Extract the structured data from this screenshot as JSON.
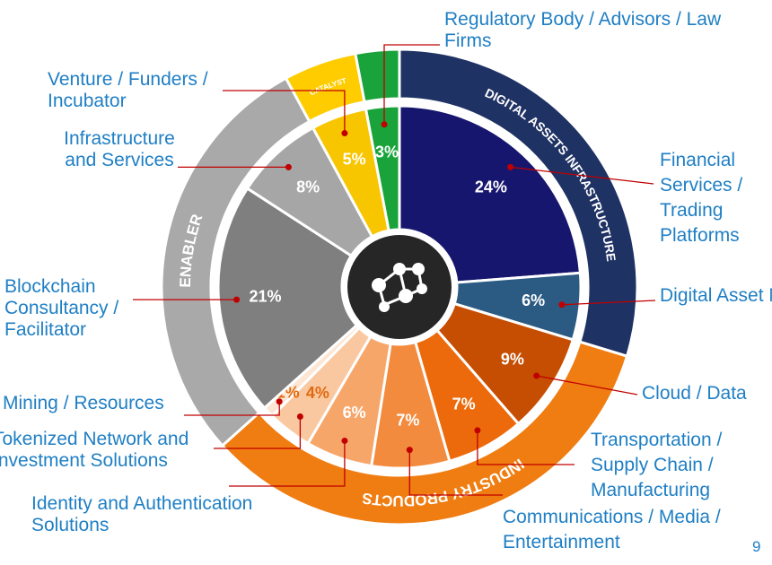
{
  "chart_data": {
    "type": "sunburst",
    "categories": [
      "Financial Services / Trading Platforms",
      "Digital Asset Mining",
      "Cloud / Data",
      "Transportation / Supply Chain / Manufacturing",
      "Communications / Media / Entertainment",
      "Identity and Authentication Solutions",
      "Tokenized Network and Investment Solutions",
      "Mining / Resources",
      "Blockchain Consultancy / Facilitator",
      "Infrastructure and Services",
      "Venture / Funders / Incubator",
      "Regulatory Body / Advisors / Law Firms"
    ],
    "values": [
      24,
      6,
      9,
      7,
      7,
      6,
      4,
      1,
      21,
      8,
      5,
      3
    ],
    "value_labels": [
      "24%",
      "6%",
      "9%",
      "7%",
      "7%",
      "6%",
      "4%",
      "1%",
      "21%",
      "8%",
      "5%",
      "3%"
    ],
    "colors": [
      "#16166e",
      "#2b5a82",
      "#c64e02",
      "#ec6a0c",
      "#f38b3e",
      "#f7a66a",
      "#fac8a0",
      "#fde6d4",
      "#7f7f7f",
      "#a6a6a6",
      "#f7c600",
      "#1aa33a"
    ],
    "groups": [
      {
        "name": "DIGITAL ASSETS INFRASTRUCTURE",
        "color": "#1f3264",
        "categories": [
          "Financial Services / Trading Platforms",
          "Digital Asset Mining"
        ]
      },
      {
        "name": "INDUSTRY PRODUCTS",
        "color": "#f07d12",
        "categories": [
          "Cloud / Data",
          "Transportation / Supply Chain / Manufacturing",
          "Communications / Media / Entertainment",
          "Identity and Authentication Solutions",
          "Tokenized Network and Investment Solutions",
          "Mining / Resources"
        ]
      },
      {
        "name": "ENABLER",
        "color": "#a9a9a9",
        "categories": [
          "Blockchain Consultancy / Facilitator",
          "Infrastructure and Services"
        ]
      },
      {
        "name": "CATALYST",
        "color": "#ffcc00",
        "categories": [
          "Venture / Funders / Incubator"
        ]
      },
      {
        "name": null,
        "color": "#1aa33a",
        "categories": [
          "Regulatory Body / Advisors / Law Firms"
        ]
      }
    ]
  },
  "page_number": "9"
}
